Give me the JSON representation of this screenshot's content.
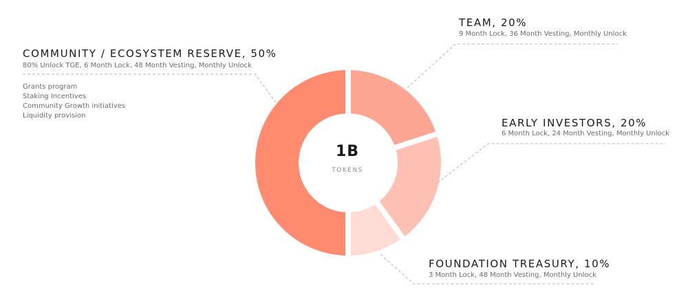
{
  "chart_data": {
    "type": "pie",
    "center": {
      "total": "1B",
      "unit": "TOKENS"
    },
    "slices": [
      {
        "title": "TEAM, 20%",
        "value": 20,
        "color": "#fca592",
        "detail": "9 Month Lock, 36 Month Vesting, Monthly Unlock"
      },
      {
        "title": "EARLY INVESTORS, 20%",
        "value": 20,
        "color": "#fdc0b2",
        "detail": "6 Month Lock, 24 Month Vesting, Monthly Unlock"
      },
      {
        "title": "FOUNDATION TREASURY, 10%",
        "value": 10,
        "color": "#fedcd3",
        "detail": "3 Month Lock, 48 Month Vesting, Monthly Unlock"
      },
      {
        "title": "COMMUNITY / ECOSYSTEM RESERVE, 50%",
        "value": 50,
        "color": "#fe8a70",
        "detail": "80% Unlock TGE, 6 Month Lock, 48 Month Vesting, Monthly Unlock"
      }
    ],
    "community_notes": [
      "Grants program",
      "Staking Incentives",
      "Community Growth initiatives",
      "Liquidity provision"
    ]
  }
}
